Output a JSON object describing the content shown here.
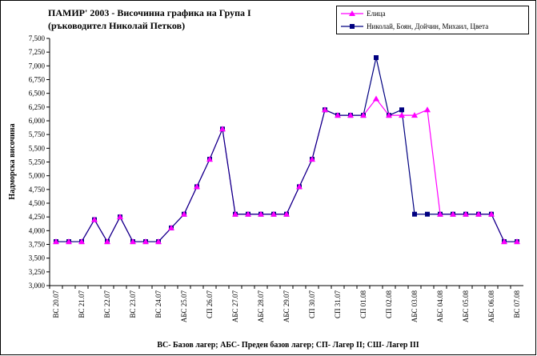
{
  "chart_data": {
    "type": "line",
    "title": "ПАМИР' 2003 - Височинна графика на Група I",
    "subtitle": "(ръководител Николай Петков)",
    "y_label": "Надморска височина",
    "x_label": "ВС- Базов лагер; АБС- Преден базов лагер; СП- Лагер II; СШ- Лагер III",
    "categories": [
      "ВС 20.07",
      null,
      "ВС 21.07",
      null,
      "ВС 22.07",
      null,
      "ВС 23.07",
      null,
      "ВС 24.07",
      null,
      "АБС 25.07",
      null,
      "СП 26.07",
      null,
      "АБС 27.07",
      null,
      "АБС 28.07",
      null,
      "АБС 29.07",
      null,
      "СП 30.07",
      null,
      "СП 31.07",
      null,
      "СП 01.08",
      null,
      "СП 02.08",
      null,
      "АБС 03.08",
      null,
      "АБС 04.08",
      null,
      "АБС 05.08",
      null,
      "АБС 06.08",
      null,
      "ВС 07.08"
    ],
    "series": [
      {
        "name": "Елица",
        "color": "#ff00ff",
        "marker": "triangle",
        "values": [
          3800,
          3800,
          3800,
          4200,
          3800,
          4250,
          3800,
          3800,
          3800,
          4050,
          4300,
          4800,
          5300,
          5850,
          4300,
          4300,
          4300,
          4300,
          4300,
          4800,
          5300,
          6200,
          6100,
          6100,
          6100,
          6400,
          6100,
          6100,
          6100,
          6200,
          4300,
          4300,
          4300,
          4300,
          4300,
          3800,
          3800
        ]
      },
      {
        "name": "Николай, Боян, Дойчин, Михаил, Цвета",
        "color": "#000080",
        "marker": "square",
        "values": [
          3800,
          3800,
          3800,
          4200,
          3800,
          4250,
          3800,
          3800,
          3800,
          4050,
          4300,
          4800,
          5300,
          5850,
          4300,
          4300,
          4300,
          4300,
          4300,
          4800,
          5300,
          6200,
          6100,
          6100,
          6100,
          7150,
          6100,
          6200,
          4300,
          4300,
          4300,
          4300,
          4300,
          4300,
          4300,
          3800,
          3800
        ]
      }
    ],
    "ylim": [
      3000,
      7500
    ],
    "yticks": [
      {
        "value": 3000,
        "label": "3,000"
      },
      {
        "value": 3250,
        "label": "3,250"
      },
      {
        "value": 3500,
        "label": "3,500"
      },
      {
        "value": 3750,
        "label": "3,750"
      },
      {
        "value": 4000,
        "label": "4,000"
      },
      {
        "value": 4250,
        "label": "4,250"
      },
      {
        "value": 4500,
        "label": "4,500"
      },
      {
        "value": 4750,
        "label": "4,750"
      },
      {
        "value": 5000,
        "label": "5,000"
      },
      {
        "value": 5250,
        "label": "5,250"
      },
      {
        "value": 5500,
        "label": "5,500"
      },
      {
        "value": 5750,
        "label": "5,750"
      },
      {
        "value": 6000,
        "label": "6,000"
      },
      {
        "value": 6250,
        "label": "6,250"
      },
      {
        "value": 6500,
        "label": "6,500"
      },
      {
        "value": 6750,
        "label": "6,750"
      },
      {
        "value": 7000,
        "label": "7,000"
      },
      {
        "value": 7250,
        "label": "7,250"
      },
      {
        "value": 7500,
        "label": "7,500"
      }
    ],
    "grid": false,
    "legend": "top-right"
  }
}
